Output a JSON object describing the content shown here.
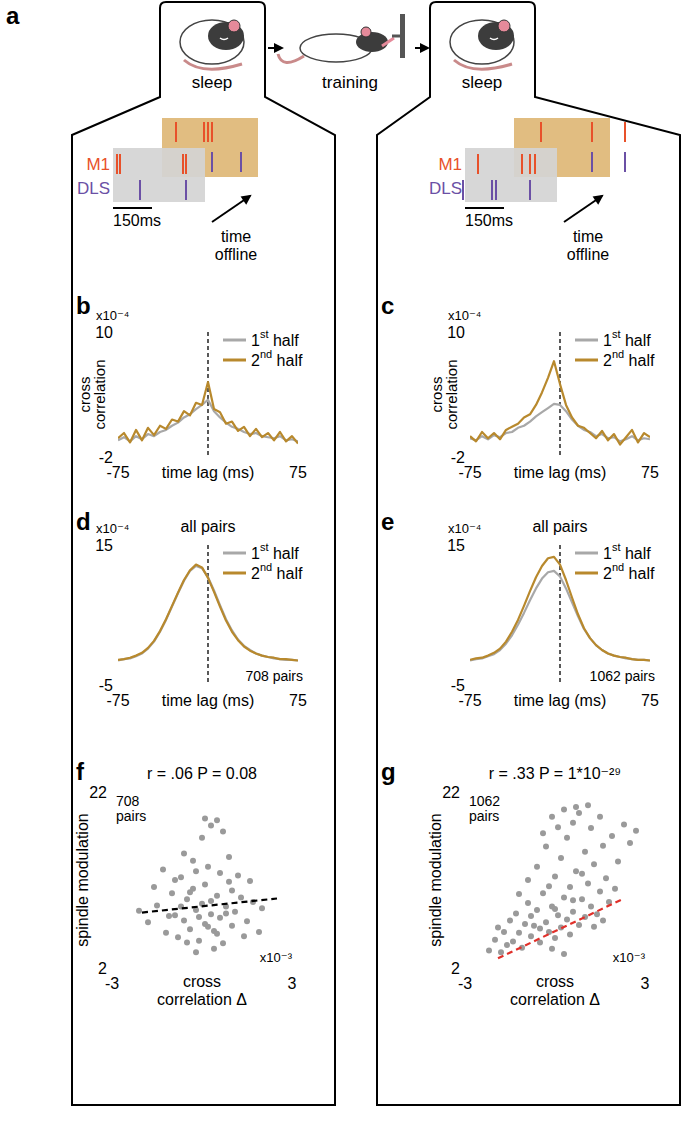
{
  "panel_a": {
    "panel_label": "a",
    "labels": [
      "sleep",
      "training",
      "sleep"
    ],
    "rasters": [
      {
        "rows": [
          "M1",
          "DLS"
        ],
        "scale_bar": "150ms",
        "arrow_label": "time offline"
      },
      {
        "rows": [
          "M1",
          "DLS"
        ],
        "scale_bar": "150ms",
        "arrow_label": "time offline"
      }
    ]
  },
  "chart_data": [
    {
      "type": "line",
      "panel_label": "b",
      "y_label": "cross correlation",
      "y_multiplier": "x10⁻⁴",
      "x_label": "time lag (ms)",
      "x": [
        -75,
        -70,
        -65,
        -60,
        -55,
        -50,
        -45,
        -40,
        -35,
        -30,
        -25,
        -20,
        -15,
        -10,
        -5,
        0,
        5,
        10,
        15,
        20,
        25,
        30,
        35,
        40,
        45,
        50,
        55,
        60,
        65,
        70,
        75
      ],
      "series": [
        {
          "name": "1st half",
          "color": "#a8a8a8",
          "values": [
            -0.4,
            -0.1,
            -0.5,
            0,
            -0.3,
            0.2,
            0,
            0.4,
            0.6,
            1.0,
            1.3,
            1.8,
            2.1,
            2.6,
            3.0,
            3.5,
            2.4,
            1.8,
            1.3,
            0.9,
            0.7,
            0.4,
            0.2,
            0.3,
            0,
            -0.1,
            -0.2,
            0,
            -0.4,
            -0.3,
            -0.5
          ]
        },
        {
          "name": "2nd half",
          "color": "#b8892d",
          "values": [
            -0.2,
            0.3,
            -0.6,
            0.6,
            -0.4,
            0.8,
            0.1,
            1.0,
            0.7,
            1.6,
            1.4,
            2.4,
            2.0,
            3.2,
            3.0,
            5.2,
            2.6,
            2.3,
            1.2,
            1.4,
            0.5,
            0.9,
            0,
            0.7,
            -0.1,
            0.3,
            -0.4,
            0.4,
            -0.5,
            0,
            -0.7
          ]
        }
      ],
      "xlim": [
        -75,
        75
      ],
      "xticks": [
        -75,
        75
      ],
      "ylim": [
        -2,
        10
      ],
      "yticks": [
        -2,
        10
      ],
      "legend": "top-right",
      "vline": 0
    },
    {
      "type": "line",
      "panel_label": "c",
      "y_label": "cross correlation",
      "y_multiplier": "x10⁻⁴",
      "x_label": "time lag (ms)",
      "x": [
        -75,
        -70,
        -65,
        -60,
        -55,
        -50,
        -45,
        -40,
        -35,
        -30,
        -25,
        -20,
        -15,
        -10,
        -5,
        0,
        5,
        10,
        15,
        20,
        25,
        30,
        35,
        40,
        45,
        50,
        55,
        60,
        65,
        70,
        75
      ],
      "series": [
        {
          "name": "1st half",
          "color": "#a8a8a8",
          "values": [
            -0.2,
            -0.4,
            0,
            -0.3,
            0.1,
            -0.1,
            0.3,
            0.4,
            0.8,
            1.0,
            1.4,
            1.9,
            2.3,
            2.7,
            3.1,
            3.0,
            2.4,
            1.6,
            1.0,
            0.6,
            0.4,
            0,
            0.2,
            -0.2,
            -0.1,
            -0.5,
            -0.3,
            0,
            -0.4,
            -0.2,
            -0.3
          ]
        },
        {
          "name": "2nd half",
          "color": "#b8892d",
          "values": [
            0,
            -0.5,
            0.4,
            -0.2,
            0.3,
            -0.3,
            0.6,
            0.9,
            1.2,
            1.8,
            2.1,
            3.0,
            4.2,
            5.6,
            7.2,
            5.0,
            3.0,
            1.8,
            1.0,
            0.8,
            0.3,
            -0.2,
            0.5,
            -0.4,
            0.2,
            -0.8,
            -0.1,
            0.6,
            -0.6,
            0.3,
            -0.1
          ]
        }
      ],
      "xlim": [
        -75,
        75
      ],
      "xticks": [
        -75,
        75
      ],
      "ylim": [
        -2,
        10
      ],
      "yticks": [
        -2,
        10
      ],
      "legend": "top-right",
      "vline": 0
    },
    {
      "type": "line",
      "panel_label": "d",
      "title": "all pairs",
      "annotation": "708 pairs",
      "y_multiplier": "x10⁻⁴",
      "x_label": "time lag (ms)",
      "x": [
        -75,
        -70,
        -65,
        -60,
        -55,
        -50,
        -45,
        -40,
        -35,
        -30,
        -25,
        -20,
        -15,
        -10,
        -5,
        0,
        5,
        10,
        15,
        20,
        25,
        30,
        35,
        40,
        45,
        50,
        55,
        60,
        65,
        70,
        75
      ],
      "series": [
        {
          "name": "1st half",
          "color": "#a8a8a8",
          "values": [
            -1.5,
            -1.3,
            -1.2,
            -0.9,
            -0.5,
            0.2,
            1.2,
            2.6,
            4.3,
            6.2,
            8.1,
            9.9,
            11.3,
            12.0,
            11.7,
            10.4,
            8.5,
            6.4,
            4.4,
            2.8,
            1.5,
            0.6,
            0,
            -0.5,
            -0.8,
            -1.0,
            -1.2,
            -1.3,
            -1.4,
            -1.4,
            -1.5
          ]
        },
        {
          "name": "2nd half",
          "color": "#b8892d",
          "values": [
            -1.4,
            -1.3,
            -1.1,
            -0.8,
            -0.4,
            0.3,
            1.3,
            2.7,
            4.4,
            6.3,
            8.2,
            10.0,
            11.4,
            12.2,
            11.8,
            10.3,
            8.3,
            6.2,
            4.2,
            2.6,
            1.4,
            0.5,
            -0.1,
            -0.5,
            -0.8,
            -1.0,
            -1.1,
            -1.3,
            -1.3,
            -1.4,
            -1.5
          ]
        }
      ],
      "xlim": [
        -75,
        75
      ],
      "xticks": [
        -75,
        75
      ],
      "ylim": [
        -5,
        15
      ],
      "yticks": [
        -5,
        15
      ],
      "legend": "top-right",
      "vline": 0
    },
    {
      "type": "line",
      "panel_label": "e",
      "title": "all pairs",
      "annotation": "1062 pairs",
      "y_multiplier": "x10⁻⁴",
      "x_label": "time lag (ms)",
      "x": [
        -75,
        -70,
        -65,
        -60,
        -55,
        -50,
        -45,
        -40,
        -35,
        -30,
        -25,
        -20,
        -15,
        -10,
        -5,
        0,
        5,
        10,
        15,
        20,
        25,
        30,
        35,
        40,
        45,
        50,
        55,
        60,
        65,
        70,
        75
      ],
      "series": [
        {
          "name": "1st half",
          "color": "#a8a8a8",
          "values": [
            -1.5,
            -1.3,
            -1.2,
            -0.9,
            -0.6,
            0,
            0.9,
            2.1,
            3.6,
            5.3,
            7.1,
            8.8,
            10.2,
            11.1,
            11.3,
            10.5,
            8.8,
            6.8,
            4.8,
            3.0,
            1.7,
            0.7,
            0,
            -0.5,
            -0.8,
            -1.0,
            -1.2,
            -1.3,
            -1.4,
            -1.4,
            -1.5
          ]
        },
        {
          "name": "2nd half",
          "color": "#b8892d",
          "values": [
            -1.4,
            -1.2,
            -1.1,
            -0.8,
            -0.4,
            0.2,
            1.2,
            2.6,
            4.3,
            6.3,
            8.4,
            10.4,
            12.0,
            13.1,
            13.3,
            12.2,
            10.0,
            7.5,
            5.1,
            3.1,
            1.7,
            0.7,
            0,
            -0.5,
            -0.8,
            -1.0,
            -1.1,
            -1.3,
            -1.4,
            -1.4,
            -1.5
          ]
        }
      ],
      "xlim": [
        -75,
        75
      ],
      "xticks": [
        -75,
        75
      ],
      "ylim": [
        -5,
        15
      ],
      "yticks": [
        -5,
        15
      ],
      "legend": "top-right",
      "vline": 0
    },
    {
      "type": "scatter",
      "panel_label": "f",
      "title": "r = .06 P = 0.08",
      "annotation": "708 pairs",
      "y_label": "spindle modulation",
      "x_label": "cross correlation Δ",
      "x_multiplier": "x10⁻³",
      "x": [
        -1.8,
        -1.5,
        -1.2,
        -1.0,
        -0.9,
        -0.8,
        -0.7,
        -0.6,
        -0.5,
        -0.4,
        -0.3,
        -0.2,
        -0.1,
        0,
        0.1,
        0.2,
        0.3,
        0.4,
        0.5,
        0.6,
        0.7,
        0.8,
        0.9,
        1.0,
        1.1,
        1.3,
        1.5,
        1.7,
        1.9,
        -1.3,
        -0.6,
        0,
        0.3,
        0.5,
        0.7,
        0.1,
        -0.3,
        0.9,
        1.2,
        -2.1,
        -1.6,
        0.4,
        -0.2,
        0.6,
        -0.9,
        1.4,
        2.0,
        -0.4,
        0.2,
        0.8,
        -0.1,
        0.3,
        -0.7,
        1.0,
        -1.1,
        0.5,
        -0.5,
        0.1,
        1.6,
        -0.2
      ],
      "values": [
        7.2,
        9.1,
        6.0,
        10.5,
        8.0,
        5.5,
        12.3,
        7.4,
        9.8,
        6.4,
        11.0,
        8.6,
        5.1,
        9.3,
        7.0,
        13.5,
        8.1,
        6.2,
        10.2,
        7.7,
        4.8,
        9.0,
        11.8,
        6.8,
        8.4,
        10.0,
        7.3,
        9.5,
        6.1,
        13.2,
        15.0,
        16.8,
        18.2,
        18.8,
        17.5,
        19.0,
        14.2,
        14.6,
        12.5,
        8.5,
        11.2,
        4.2,
        3.8,
        12.8,
        12.0,
        5.6,
        8.8,
        10.6,
        6.7,
        8.2,
        7.8,
        9.6,
        9.0,
        10.8,
        7.9,
        5.9,
        4.9,
        11.5,
        11.9,
        13.0
      ],
      "color": "#9a9a9a",
      "marker": "circle",
      "trend": {
        "x": [
          -2.0,
          2.5
        ],
        "values": [
          8.3,
          9.9
        ],
        "color": "#000000",
        "line_style": "dashed"
      },
      "xlim": [
        -3,
        3
      ],
      "xticks": [
        -3,
        3
      ],
      "ylim": [
        2,
        22
      ],
      "yticks": [
        2,
        22
      ]
    },
    {
      "type": "scatter",
      "panel_label": "g",
      "title": "r = .33 P = 1*10⁻²⁹",
      "annotation": "1062 pairs",
      "y_label": "spindle modulation",
      "x_label": "cross correlation Δ",
      "x_multiplier": "x10⁻³",
      "x": [
        -2.2,
        -2.0,
        -1.8,
        -1.7,
        -1.6,
        -1.5,
        -1.4,
        -1.3,
        -1.2,
        -1.1,
        -1.0,
        -0.9,
        -0.8,
        -0.7,
        -0.6,
        -0.5,
        -0.4,
        -0.3,
        -0.2,
        -0.1,
        0,
        0,
        0.1,
        0.2,
        0.2,
        0.3,
        0.4,
        0.4,
        0.5,
        0.6,
        0.6,
        0.7,
        0.8,
        0.8,
        0.9,
        1.0,
        1.0,
        1.1,
        1.2,
        1.2,
        1.3,
        1.4,
        1.5,
        1.5,
        1.6,
        1.7,
        1.8,
        1.9,
        2.0,
        2.1,
        2.3,
        2.5,
        2.7,
        -0.6,
        -0.3,
        0.1,
        -0.9,
        -1.2,
        0.3,
        -0.1,
        0.7,
        1.1,
        -0.4,
        -0.2,
        0.5,
        -0.8,
        1.3,
        0.9,
        -1.9,
        -0.5,
        0,
        0.6,
        1.6,
        -0.1,
        0.3
      ],
      "values": [
        4.0,
        5.2,
        3.8,
        6.1,
        4.6,
        7.4,
        5.0,
        8.2,
        6.0,
        4.3,
        7.0,
        9.4,
        5.6,
        6.8,
        8.6,
        4.9,
        10.5,
        7.2,
        6.1,
        9.0,
        12.4,
        5.4,
        8.0,
        14.5,
        6.6,
        10.0,
        7.5,
        16.8,
        11.2,
        8.4,
        18.5,
        13.0,
        6.9,
        19.6,
        9.8,
        15.2,
        7.8,
        11.6,
        17.9,
        9.0,
        13.8,
        8.1,
        19.2,
        10.7,
        15.9,
        12.2,
        9.5,
        17.0,
        11.0,
        14.1,
        18.3,
        16.2,
        17.6,
        13.5,
        15.8,
        18.0,
        12.0,
        10.4,
        20.0,
        19.2,
        20.3,
        20.5,
        17.3,
        11.3,
        5.8,
        7.9,
        6.7,
        12.7,
        6.6,
        6.5,
        8.7,
        9.7,
        7.4,
        4.2,
        3.6
      ],
      "color": "#9a9a9a",
      "marker": "circle",
      "trend": {
        "x": [
          -1.9,
          2.3
        ],
        "values": [
          3.1,
          9.9
        ],
        "color": "#e0302a",
        "line_style": "dashed"
      },
      "xlim": [
        -3,
        3
      ],
      "xticks": [
        -3,
        3
      ],
      "ylim": [
        2,
        22
      ],
      "yticks": [
        2,
        22
      ]
    }
  ]
}
